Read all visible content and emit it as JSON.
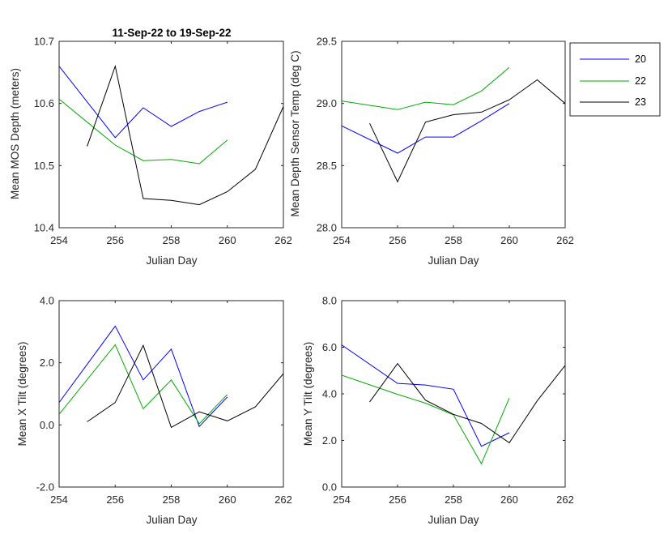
{
  "colors": {
    "s20": "#0000ff",
    "s22": "#00aa00",
    "s23": "#000000",
    "axis": "#262626"
  },
  "legend": {
    "position": "top-right-outside",
    "entries": [
      "20",
      "22",
      "23"
    ]
  },
  "chart_data": [
    {
      "type": "line",
      "title": "11-Sep-22 to 19-Sep-22",
      "xlabel": "Julian Day",
      "ylabel": "Mean MOS Depth  (meters)",
      "xlim": [
        254,
        262
      ],
      "ylim": [
        10.4,
        10.7
      ],
      "xticks": [
        "254",
        "256",
        "258",
        "260",
        "262"
      ],
      "yticks": [
        "10.4",
        "10.5",
        "10.6",
        "10.7"
      ],
      "series": [
        {
          "name": "20",
          "x": [
            254,
            256,
            257,
            258,
            259,
            260
          ],
          "y": [
            10.66,
            10.545,
            10.593,
            10.563,
            10.587,
            10.602
          ]
        },
        {
          "name": "22",
          "x": [
            254,
            256,
            257,
            258,
            259,
            260
          ],
          "y": [
            10.607,
            10.533,
            10.508,
            10.51,
            10.503,
            10.541
          ]
        },
        {
          "name": "23",
          "x": [
            255,
            256,
            257,
            258,
            259,
            260,
            261,
            262
          ],
          "y": [
            10.531,
            10.66,
            10.447,
            10.444,
            10.437,
            10.458,
            10.494,
            10.595
          ]
        }
      ]
    },
    {
      "type": "line",
      "title": "",
      "xlabel": "Julian Day",
      "ylabel": "Mean Depth Sensor Temp (deg C)",
      "xlim": [
        254,
        262
      ],
      "ylim": [
        28.0,
        29.5
      ],
      "xticks": [
        "254",
        "256",
        "258",
        "260",
        "262"
      ],
      "yticks": [
        "28.0",
        "28.5",
        "29.0",
        "29.5"
      ],
      "series": [
        {
          "name": "20",
          "x": [
            254,
            256,
            257,
            258,
            259,
            260
          ],
          "y": [
            28.82,
            28.6,
            28.73,
            28.73,
            28.86,
            29.0
          ]
        },
        {
          "name": "22",
          "x": [
            254,
            256,
            257,
            258,
            259,
            260
          ],
          "y": [
            29.02,
            28.95,
            29.01,
            28.99,
            29.1,
            29.29
          ]
        },
        {
          "name": "23",
          "x": [
            255,
            256,
            257,
            258,
            259,
            260,
            261,
            262
          ],
          "y": [
            28.84,
            28.37,
            28.85,
            28.91,
            28.93,
            29.03,
            29.19,
            29.0
          ]
        }
      ]
    },
    {
      "type": "line",
      "title": "",
      "xlabel": "Julian Day",
      "ylabel": "Mean X Tilt  (degrees)",
      "xlim": [
        254,
        262
      ],
      "ylim": [
        -2.0,
        4.0
      ],
      "xticks": [
        "254",
        "256",
        "258",
        "260",
        "262"
      ],
      "yticks": [
        "-2.0",
        "0.0",
        "2.0",
        "4.0"
      ],
      "series": [
        {
          "name": "20",
          "x": [
            254,
            256,
            257,
            258,
            259,
            260
          ],
          "y": [
            0.72,
            3.18,
            1.45,
            2.44,
            -0.05,
            0.9
          ]
        },
        {
          "name": "22",
          "x": [
            254,
            256,
            257,
            258,
            259,
            260
          ],
          "y": [
            0.34,
            2.58,
            0.52,
            1.45,
            0.04,
            0.98
          ]
        },
        {
          "name": "23",
          "x": [
            255,
            256,
            257,
            258,
            259,
            260,
            261,
            262
          ],
          "y": [
            0.1,
            0.72,
            2.56,
            -0.08,
            0.42,
            0.13,
            0.58,
            1.65
          ]
        }
      ]
    },
    {
      "type": "line",
      "title": "",
      "xlabel": "Julian Day",
      "ylabel": "Mean Y Tilt  (degrees)",
      "xlim": [
        254,
        262
      ],
      "ylim": [
        0.0,
        8.0
      ],
      "xticks": [
        "254",
        "256",
        "258",
        "260",
        "262"
      ],
      "yticks": [
        "0.0",
        "2.0",
        "4.0",
        "6.0",
        "8.0"
      ],
      "series": [
        {
          "name": "20",
          "x": [
            254,
            256,
            257,
            258,
            259,
            260
          ],
          "y": [
            6.1,
            4.45,
            4.38,
            4.2,
            1.75,
            2.33
          ]
        },
        {
          "name": "22",
          "x": [
            254,
            256,
            257,
            258,
            259,
            260
          ],
          "y": [
            4.8,
            3.98,
            3.6,
            3.1,
            1.0,
            3.82
          ]
        },
        {
          "name": "23",
          "x": [
            255,
            256,
            257,
            258,
            259,
            260,
            261,
            262
          ],
          "y": [
            3.65,
            5.3,
            3.73,
            3.12,
            2.73,
            1.9,
            3.7,
            5.22
          ]
        }
      ]
    }
  ]
}
